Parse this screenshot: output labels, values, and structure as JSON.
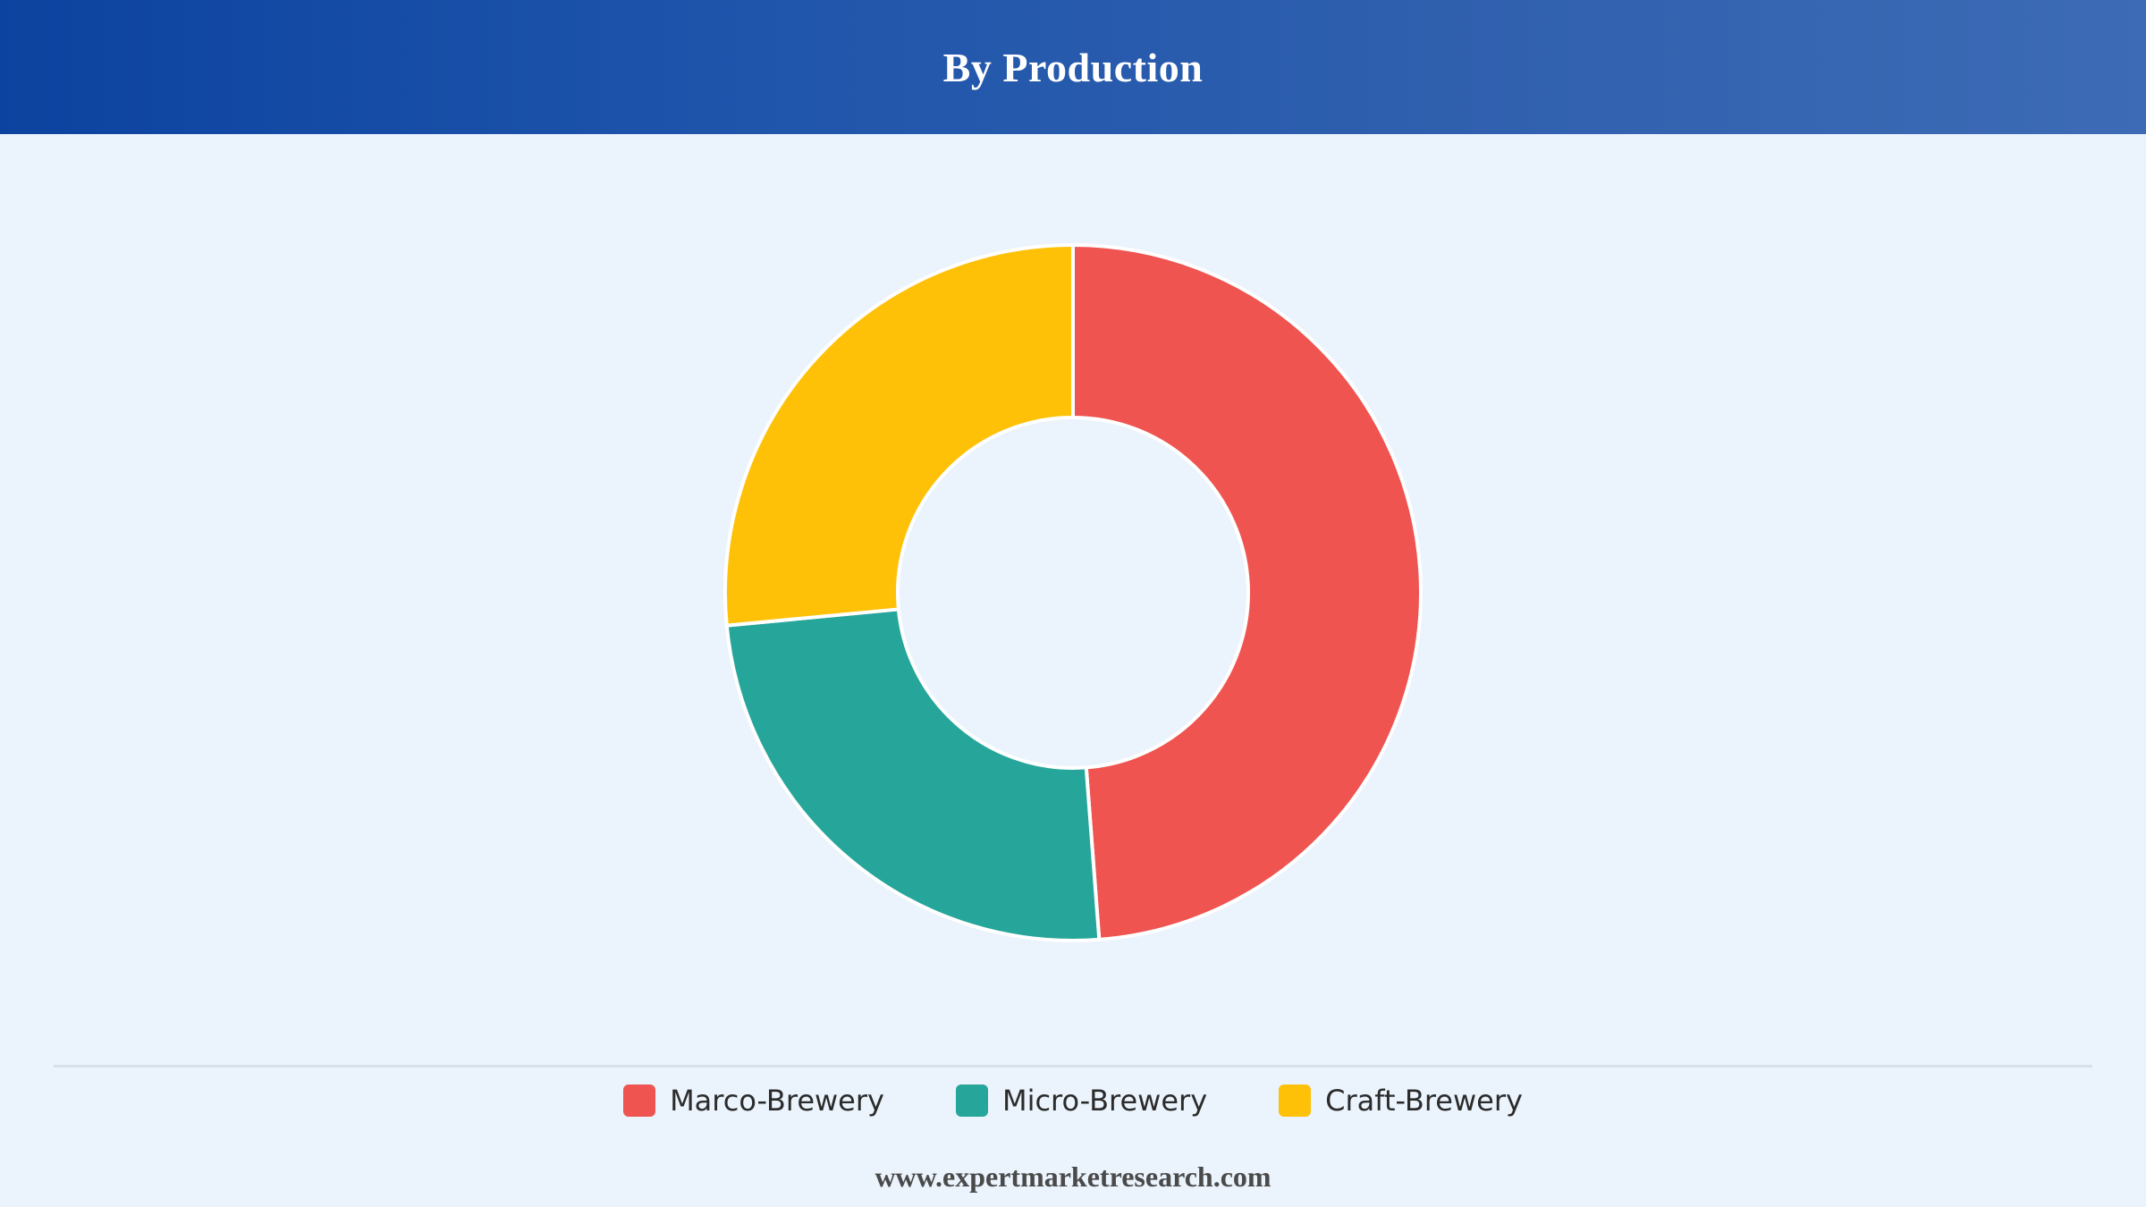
{
  "header": {
    "title": "By Production",
    "background_gradient": [
      "#0c43a0",
      "#3d6bb5"
    ]
  },
  "chart_data": {
    "type": "pie",
    "variant": "donut",
    "title": "By Production",
    "categories": [
      "Marco-Brewery",
      "Micro-Brewery",
      "Craft-Brewery"
    ],
    "values": [
      48.8,
      24.7,
      26.5
    ],
    "unit": "%",
    "colors": [
      "#ef5451",
      "#26a69a",
      "#fec107"
    ],
    "legend_position": "bottom-center",
    "start_angle_deg": 0
  },
  "legend": {
    "items": [
      {
        "label": "Marco-Brewery",
        "color": "#ef5451"
      },
      {
        "label": "Micro-Brewery",
        "color": "#26a69a"
      },
      {
        "label": "Craft-Brewery",
        "color": "#fec107"
      }
    ]
  },
  "footer": {
    "source": "www.expertmarketresearch.com"
  },
  "colors": {
    "background": "#ebf3fc",
    "slice_border": "#ffffff",
    "divider": "#d9dfe6"
  }
}
